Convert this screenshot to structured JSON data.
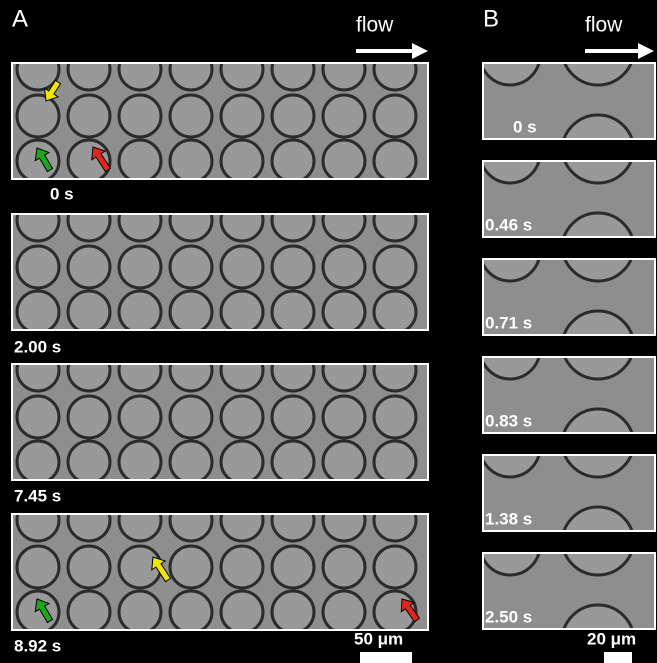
{
  "panel_a": {
    "label": "A",
    "flow": "flow",
    "frames": [
      {
        "time": "0 s"
      },
      {
        "time": "2.00 s"
      },
      {
        "time": "7.45 s"
      },
      {
        "time": "8.92 s"
      }
    ],
    "scale_bar": "50 μm"
  },
  "panel_b": {
    "label": "B",
    "flow": "flow",
    "frames": [
      {
        "time": "0 s"
      },
      {
        "time": "0.46 s"
      },
      {
        "time": "0.71 s"
      },
      {
        "time": "0.83 s"
      },
      {
        "time": "1.38 s"
      },
      {
        "time": "2.50 s"
      }
    ],
    "scale_bar": "20 μm"
  }
}
